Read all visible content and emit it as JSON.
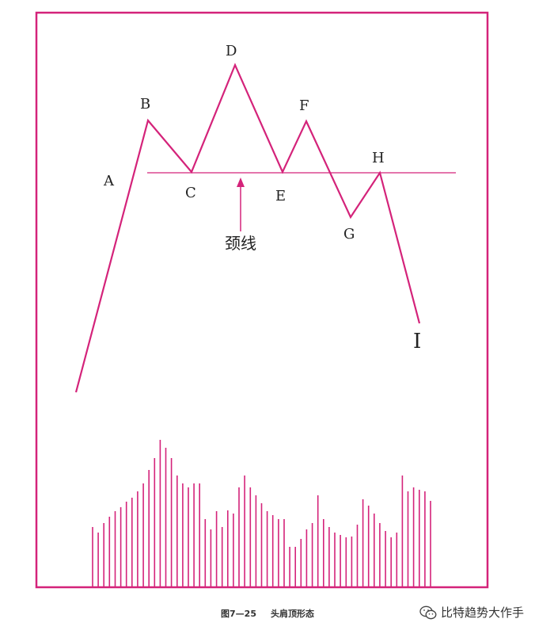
{
  "diagram": {
    "accent_color": "#d4237a",
    "points": {
      "A": "A",
      "B": "B",
      "C": "C",
      "D": "D",
      "E": "E",
      "F": "F",
      "G": "G",
      "H": "H",
      "I": "I"
    },
    "neckline_label": "颈线"
  },
  "caption": {
    "figure_number": "图7—25",
    "title": "头肩顶形态"
  },
  "watermark": {
    "icon": "wechat-icon",
    "text": "比特趋势大作手"
  }
}
